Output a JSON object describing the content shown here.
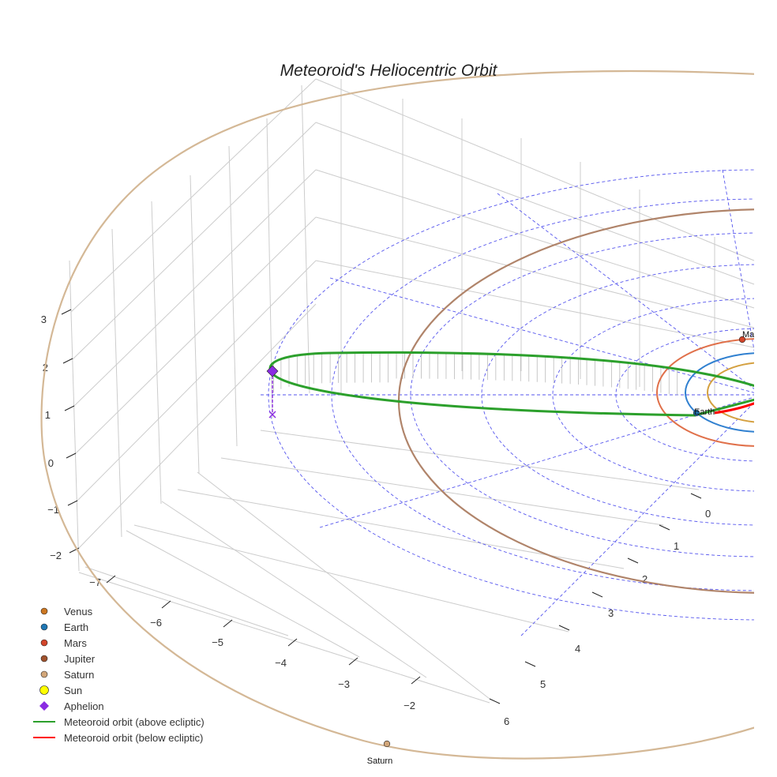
{
  "chart_data": {
    "type": "scatter",
    "subtype": "3d-orbit",
    "title": "Meteoroid's Heliocentric Orbit",
    "axes": {
      "x": {
        "ticks": [
          -7,
          -6,
          -5,
          -4,
          -3,
          -2
        ]
      },
      "y": {
        "ticks": [
          0,
          1,
          2,
          3,
          4,
          5,
          6
        ]
      },
      "z": {
        "ticks": [
          -2,
          -1,
          0,
          1,
          2,
          3
        ]
      }
    },
    "grid": true,
    "legend": {
      "placement": "bottom-left",
      "entries": [
        {
          "label": "Venus",
          "marker": "circle",
          "color": "#cc7722"
        },
        {
          "label": "Earth",
          "marker": "circle",
          "color": "#1f77b4"
        },
        {
          "label": "Mars",
          "marker": "circle",
          "color": "#d2452a"
        },
        {
          "label": "Jupiter",
          "marker": "circle",
          "color": "#a0522d"
        },
        {
          "label": "Saturn",
          "marker": "circle",
          "color": "#d2a679"
        },
        {
          "label": "Sun",
          "marker": "circle",
          "color": "#ffff00"
        },
        {
          "label": "Aphelion",
          "marker": "diamond",
          "color": "#8a2be2"
        },
        {
          "label": "Meteoroid orbit (above ecliptic)",
          "marker": "line",
          "color": "#2ca02c"
        },
        {
          "label": "Meteoroid orbit (below ecliptic)",
          "marker": "line",
          "color": "#ff0000"
        }
      ]
    },
    "planet_labels": [
      {
        "label": "Mars",
        "color": "#d2452a"
      },
      {
        "label": "Earth",
        "color": "#1f77b4"
      },
      {
        "label": "Saturn",
        "color": "#d2a679"
      }
    ],
    "colors": {
      "venus_orbit": "#d4a040",
      "earth_orbit": "#3080d0",
      "mars_orbit": "#e0704a",
      "jupiter_orbit": "#b0846a",
      "saturn_orbit": "#d4b896",
      "reference_grid": "#5555ee",
      "aphelion_projection": "#8a2be2",
      "drop_lines": "#bbbbbb",
      "pane_grid": "#cccccc"
    }
  }
}
